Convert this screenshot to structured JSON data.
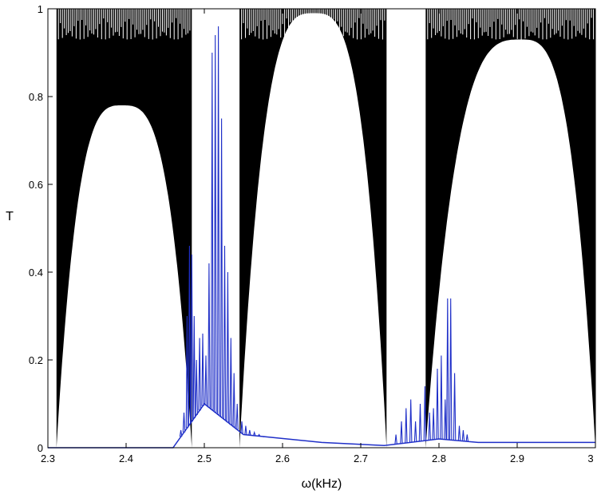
{
  "chart_data": {
    "type": "line",
    "title": "",
    "xlabel": "ω(kHz)",
    "ylabel": "T",
    "xlim": [
      2.3,
      3.0
    ],
    "ylim": [
      0,
      1
    ],
    "xticks": [
      2.3,
      2.4,
      2.5,
      2.6,
      2.7,
      2.8,
      2.9,
      3.0
    ],
    "xtick_labels": [
      "2.3",
      "2.4",
      "2.5",
      "2.6",
      "2.7",
      "2.8",
      "2.9",
      "3"
    ],
    "yticks": [
      0,
      0.2,
      0.4,
      0.6,
      0.8,
      1.0
    ],
    "ytick_labels": [
      "0",
      "0.2",
      "0.4",
      "0.6",
      "0.8",
      "1"
    ],
    "grid": false,
    "legend": "none",
    "series": [
      {
        "color": "#000000",
        "style": "dense oscillation filling the band between a lower envelope and T=1",
        "passbands": [
          {
            "from": 2.311,
            "to": 2.484,
            "peak_x": 2.395,
            "lower_envelope_peak": 0.78
          },
          {
            "from": 2.545,
            "to": 2.733,
            "peak_x": 2.64,
            "lower_envelope_peak": 0.99
          },
          {
            "from": 2.783,
            "to": 3.0,
            "peak_x": 2.905,
            "lower_envelope_peak": 0.93
          }
        ],
        "stopbands": [
          [
            2.3,
            2.311
          ],
          [
            2.49,
            2.545
          ],
          [
            2.733,
            2.783
          ]
        ]
      },
      {
        "color": "#1f2fc8",
        "style": "narrow resonance spikes over a small noisy baseline",
        "peaks": [
          {
            "x": 2.47,
            "y": 0.04
          },
          {
            "x": 2.474,
            "y": 0.08
          },
          {
            "x": 2.478,
            "y": 0.3
          },
          {
            "x": 2.481,
            "y": 0.46
          },
          {
            "x": 2.484,
            "y": 0.44
          },
          {
            "x": 2.487,
            "y": 0.3
          },
          {
            "x": 2.49,
            "y": 0.2
          },
          {
            "x": 2.494,
            "y": 0.25
          },
          {
            "x": 2.498,
            "y": 0.26
          },
          {
            "x": 2.502,
            "y": 0.21
          },
          {
            "x": 2.506,
            "y": 0.42
          },
          {
            "x": 2.51,
            "y": 0.9
          },
          {
            "x": 2.514,
            "y": 0.94
          },
          {
            "x": 2.518,
            "y": 0.96
          },
          {
            "x": 2.522,
            "y": 0.75
          },
          {
            "x": 2.526,
            "y": 0.46
          },
          {
            "x": 2.53,
            "y": 0.4
          },
          {
            "x": 2.534,
            "y": 0.25
          },
          {
            "x": 2.538,
            "y": 0.17
          },
          {
            "x": 2.542,
            "y": 0.1
          },
          {
            "x": 2.548,
            "y": 0.06
          },
          {
            "x": 2.553,
            "y": 0.05
          },
          {
            "x": 2.558,
            "y": 0.04
          },
          {
            "x": 2.564,
            "y": 0.035
          },
          {
            "x": 2.57,
            "y": 0.03
          },
          {
            "x": 2.576,
            "y": 0.025
          },
          {
            "x": 2.745,
            "y": 0.03
          },
          {
            "x": 2.752,
            "y": 0.06
          },
          {
            "x": 2.758,
            "y": 0.09
          },
          {
            "x": 2.764,
            "y": 0.11
          },
          {
            "x": 2.77,
            "y": 0.06
          },
          {
            "x": 2.776,
            "y": 0.1
          },
          {
            "x": 2.782,
            "y": 0.14
          },
          {
            "x": 2.788,
            "y": 0.08
          },
          {
            "x": 2.793,
            "y": 0.09
          },
          {
            "x": 2.798,
            "y": 0.18
          },
          {
            "x": 2.803,
            "y": 0.21
          },
          {
            "x": 2.808,
            "y": 0.11
          },
          {
            "x": 2.811,
            "y": 0.34
          },
          {
            "x": 2.815,
            "y": 0.34
          },
          {
            "x": 2.82,
            "y": 0.17
          },
          {
            "x": 2.826,
            "y": 0.05
          },
          {
            "x": 2.831,
            "y": 0.04
          },
          {
            "x": 2.836,
            "y": 0.03
          }
        ],
        "baseline": [
          {
            "x": 2.3,
            "y": 0.0
          },
          {
            "x": 2.46,
            "y": 0.0
          },
          {
            "x": 2.5,
            "y": 0.1
          },
          {
            "x": 2.55,
            "y": 0.03
          },
          {
            "x": 2.65,
            "y": 0.012
          },
          {
            "x": 2.73,
            "y": 0.005
          },
          {
            "x": 2.8,
            "y": 0.02
          },
          {
            "x": 2.85,
            "y": 0.012
          },
          {
            "x": 3.0,
            "y": 0.012
          }
        ]
      }
    ]
  }
}
